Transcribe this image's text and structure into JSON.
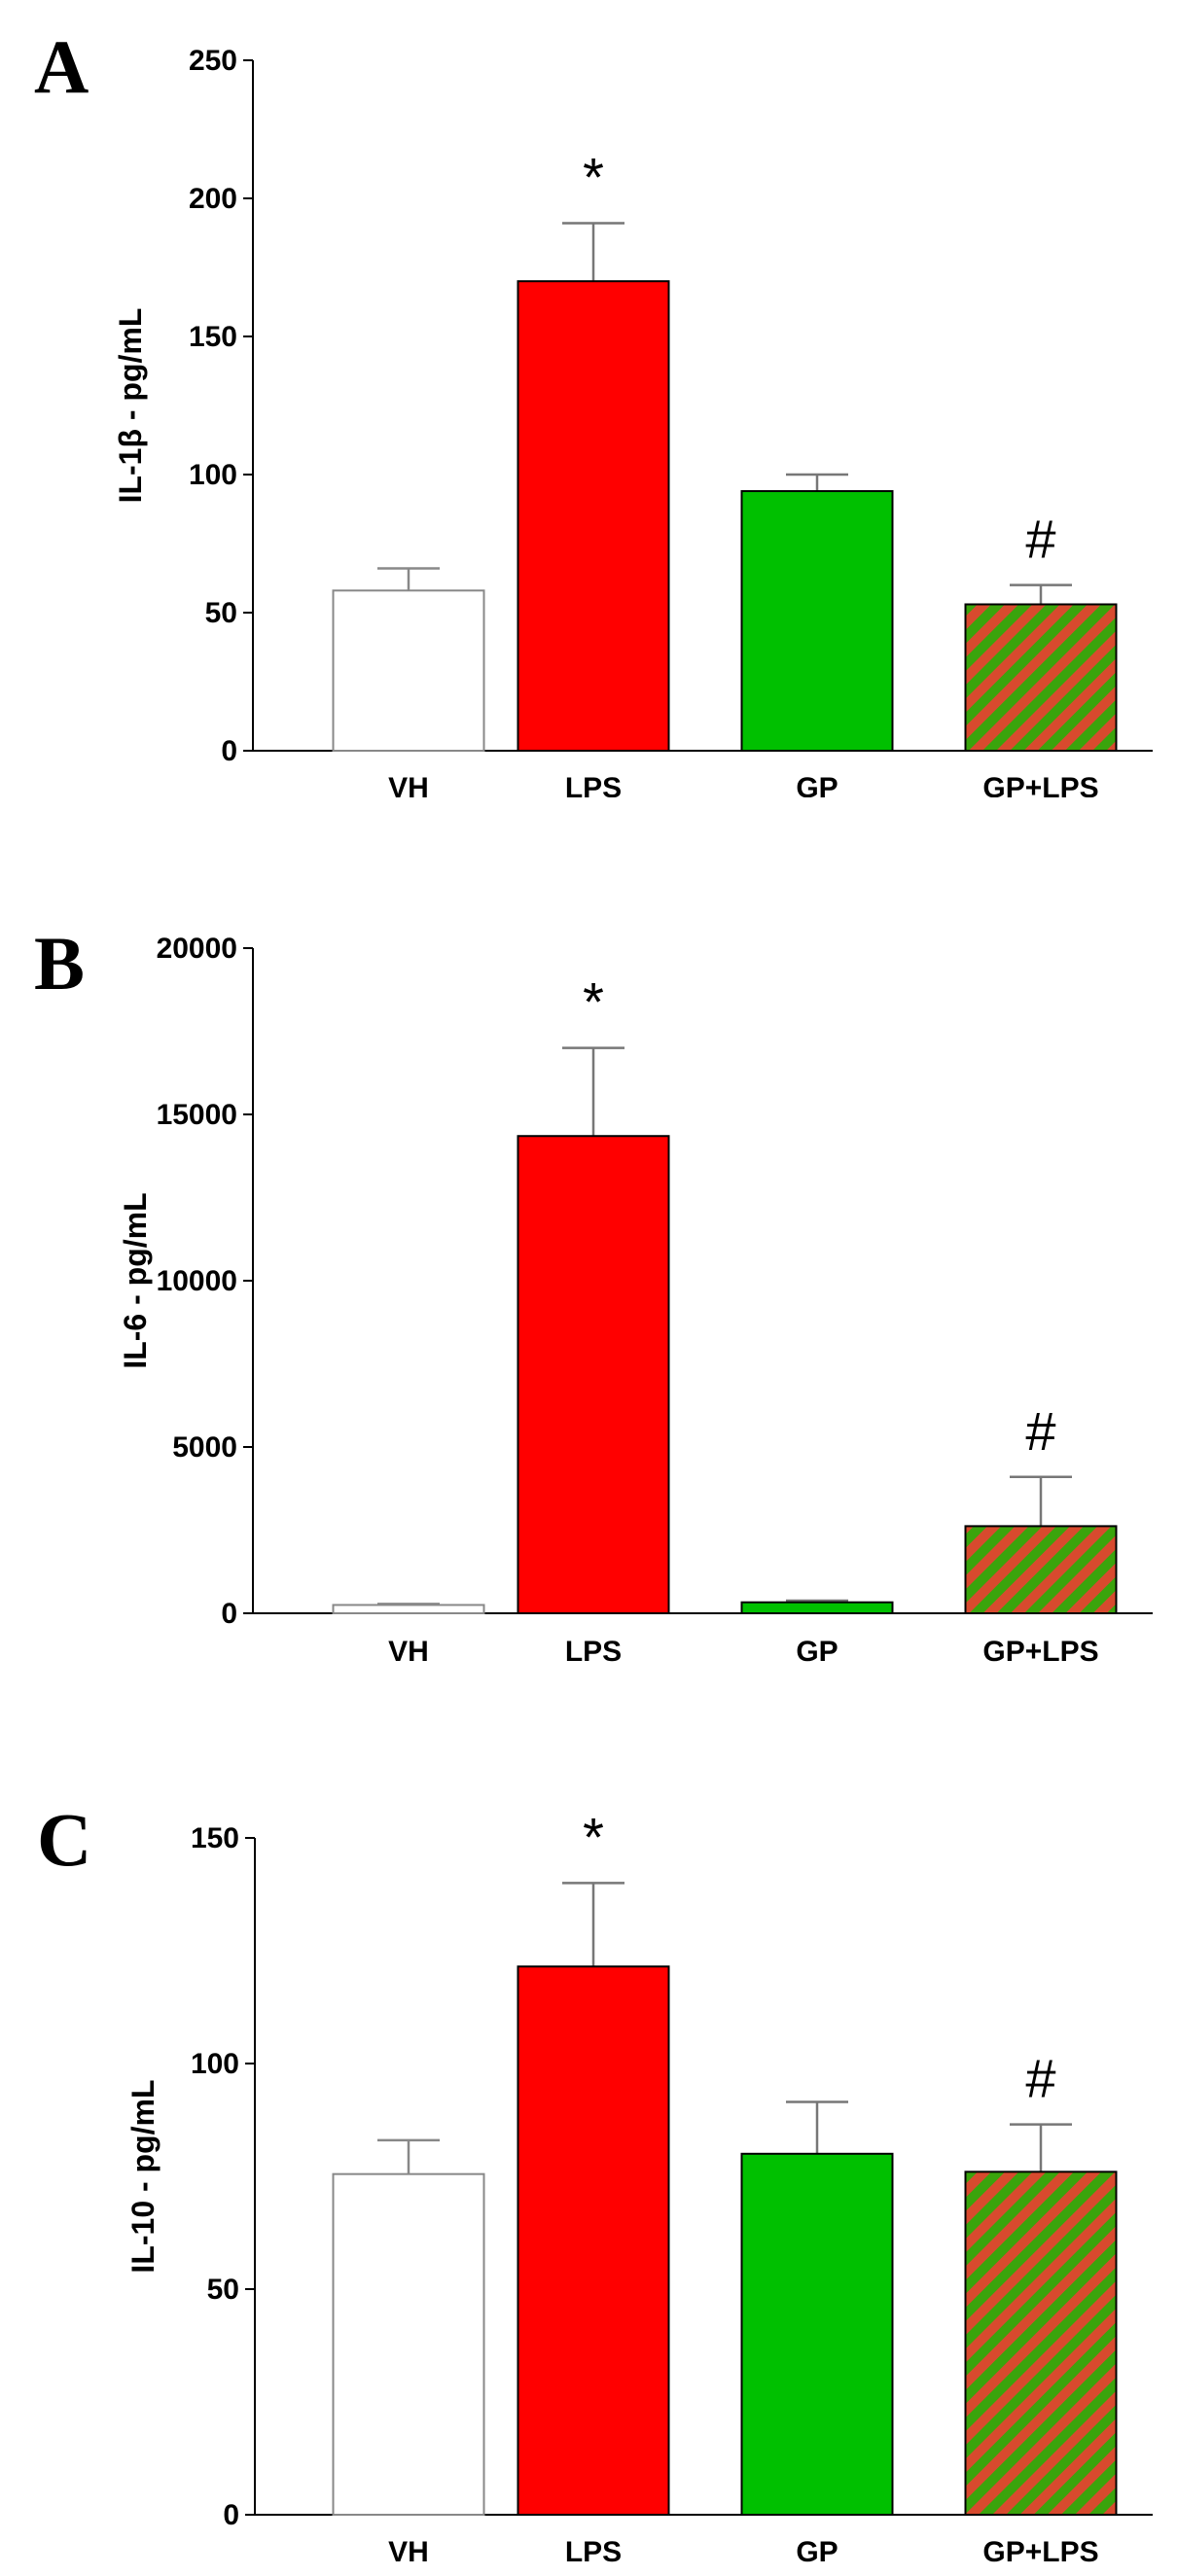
{
  "colors": {
    "vh": "#ffffff",
    "lps": "#ff0000",
    "gp": "#00c000",
    "stripe_a": "#3aa40c",
    "stripe_b": "#d84a2e",
    "error": "#777777",
    "axis": "#000000"
  },
  "chart_data": [
    {
      "type": "bar",
      "panel": "A",
      "ylabel": "IL-1β - pg/mL",
      "categories": [
        "VH",
        "LPS",
        "GP",
        "GP+LPS"
      ],
      "values": [
        58,
        170,
        94,
        53
      ],
      "errors": [
        8,
        21,
        6,
        7
      ],
      "annotations": [
        "",
        "*",
        "",
        "#"
      ],
      "ylim": [
        0,
        250
      ],
      "yticks": [
        0,
        50,
        100,
        150,
        200,
        250
      ],
      "ytick_labels": [
        "0",
        "50",
        "100",
        "150",
        "200",
        "250"
      ]
    },
    {
      "type": "bar",
      "panel": "B",
      "ylabel": "IL-6 - pg/mL",
      "categories": [
        "VH",
        "LPS",
        "GP",
        "GP+LPS"
      ],
      "values": [
        250,
        14350,
        330,
        2620
      ],
      "errors": [
        30,
        2650,
        50,
        1480
      ],
      "annotations": [
        "",
        "*",
        "",
        "#"
      ],
      "ylim": [
        0,
        20000
      ],
      "yticks": [
        0,
        5000,
        10000,
        15000,
        20000
      ],
      "ytick_labels": [
        "0",
        "5000",
        "10000",
        "15000",
        "20000"
      ]
    },
    {
      "type": "bar",
      "panel": "C",
      "ylabel": "IL-10 - pg/mL",
      "categories": [
        "VH",
        "LPS",
        "GP",
        "GP+LPS"
      ],
      "values": [
        75.5,
        121.5,
        80,
        76
      ],
      "errors": [
        7.5,
        18.5,
        11.5,
        10.5
      ],
      "annotations": [
        "",
        "*",
        "",
        "#"
      ],
      "ylim": [
        0,
        150
      ],
      "yticks": [
        0,
        50,
        100,
        150
      ],
      "ytick_labels": [
        "0",
        "50",
        "100",
        "150"
      ]
    }
  ]
}
